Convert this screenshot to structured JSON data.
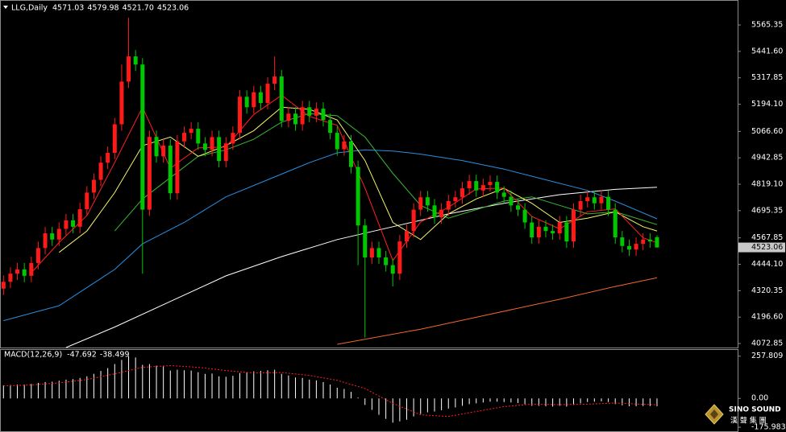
{
  "chart_data": [
    {
      "type": "candlestick",
      "title": "LLG,Daily",
      "info": [
        "4571.03",
        "4579.98",
        "4521.70",
        "4523.06"
      ],
      "xlim": [
        -0.5,
        105.6
      ],
      "open": [
        4330,
        4362,
        4400,
        4420,
        4390,
        4450,
        4520,
        4589,
        4560,
        4610,
        4650,
        4620,
        4702,
        4780,
        4840,
        4920,
        4966,
        5100,
        5300,
        5418,
        5380,
        4700,
        5041,
        4950,
        5000,
        4777,
        5020,
        5060,
        5079,
        5010,
        4980,
        5040,
        4928,
        5010,
        5060,
        5229,
        5180,
        5250,
        5200,
        5290,
        5324,
        5116,
        5150,
        5100,
        5180,
        5140,
        5173,
        5120,
        5060,
        4983,
        5020,
        4900,
        4626,
        4476,
        4520,
        4476,
        4440,
        4400,
        4551,
        4600,
        4700,
        4758,
        4720,
        4664,
        4700,
        4740,
        4758,
        4800,
        4834,
        4790,
        4815,
        4830,
        4780,
        4760,
        4720,
        4700,
        4640,
        4570,
        4620,
        4600,
        4589,
        4640,
        4551,
        4700,
        4740,
        4758,
        4730,
        4760,
        4700,
        4570,
        4530,
        4513,
        4540,
        4560,
        4571.03
      ],
      "high": [
        4392,
        4430,
        4450,
        4450,
        4480,
        4550,
        4619,
        4619,
        4640,
        4680,
        4680,
        4732,
        4810,
        4870,
        4950,
        4996,
        5130,
        5380,
        5599,
        5448,
        5410,
        5071,
        5071,
        5030,
        5030,
        5050,
        5090,
        5109,
        5109,
        5040,
        5070,
        5070,
        5040,
        5090,
        5259,
        5259,
        5280,
        5280,
        5320,
        5418,
        5354,
        5180,
        5180,
        5210,
        5210,
        5203,
        5203,
        5150,
        5090,
        5050,
        5050,
        4930,
        4656,
        4550,
        4550,
        4506,
        4470,
        4581,
        4630,
        4730,
        4788,
        4788,
        4750,
        4730,
        4770,
        4788,
        4830,
        4864,
        4864,
        4845,
        4860,
        4860,
        4810,
        4790,
        4750,
        4730,
        4670,
        4650,
        4650,
        4630,
        4670,
        4670,
        4730,
        4770,
        4788,
        4788,
        4790,
        4790,
        4730,
        4600,
        4560,
        4570,
        4590,
        4590,
        4579.98
      ],
      "low": [
        4300,
        4332,
        4370,
        4360,
        4360,
        4420,
        4490,
        4530,
        4530,
        4580,
        4590,
        4590,
        4672,
        4750,
        4810,
        4890,
        4936,
        5070,
        5270,
        5350,
        4400,
        4670,
        4920,
        4920,
        4747,
        4747,
        4990,
        5030,
        4980,
        4950,
        4950,
        4898,
        4898,
        4980,
        5030,
        5150,
        5150,
        5170,
        5170,
        5260,
        5086,
        5086,
        5070,
        5070,
        5110,
        5110,
        5090,
        5030,
        4953,
        4953,
        4870,
        4440,
        4100,
        4446,
        4446,
        4410,
        4340,
        4370,
        4521,
        4570,
        4670,
        4690,
        4634,
        4634,
        4670,
        4710,
        4728,
        4770,
        4760,
        4760,
        4785,
        4750,
        4730,
        4690,
        4670,
        4610,
        4540,
        4540,
        4570,
        4559,
        4559,
        4521,
        4521,
        4670,
        4710,
        4700,
        4700,
        4670,
        4540,
        4500,
        4483,
        4483,
        4510,
        4521,
        4521.7
      ],
      "close": [
        4362,
        4400,
        4420,
        4390,
        4450,
        4520,
        4589,
        4560,
        4610,
        4650,
        4620,
        4702,
        4780,
        4840,
        4920,
        4966,
        5100,
        5300,
        5418,
        5380,
        4700,
        5041,
        4950,
        5000,
        4777,
        5020,
        5060,
        5079,
        5010,
        4980,
        5040,
        4928,
        5010,
        5060,
        5229,
        5180,
        5250,
        5200,
        5290,
        5324,
        5116,
        5150,
        5100,
        5180,
        5140,
        5173,
        5120,
        5060,
        4983,
        5020,
        4900,
        4626,
        4476,
        4520,
        4476,
        4440,
        4400,
        4551,
        4600,
        4700,
        4758,
        4720,
        4664,
        4700,
        4740,
        4758,
        4800,
        4834,
        4790,
        4815,
        4830,
        4780,
        4760,
        4720,
        4700,
        4640,
        4570,
        4620,
        4600,
        4589,
        4640,
        4551,
        4700,
        4740,
        4758,
        4730,
        4760,
        4700,
        4570,
        4530,
        4513,
        4540,
        4560,
        4551,
        4523.06
      ],
      "up_color": "#ff1a1a",
      "down_color": "#00c800",
      "lines": [
        {
          "color": "#ffffff",
          "x": [
            9,
            16,
            24,
            32,
            40,
            48,
            56,
            64,
            72,
            80,
            88,
            94
          ],
          "values": [
            4054,
            4150,
            4270,
            4390,
            4480,
            4560,
            4620,
            4680,
            4730,
            4770,
            4795,
            4805
          ]
        },
        {
          "color": "#f0682c",
          "x": [
            48,
            60,
            70,
            80,
            88,
            94
          ],
          "values": [
            4069,
            4140,
            4210,
            4280,
            4340,
            4381
          ]
        },
        {
          "color": "#2a8fe0",
          "x": [
            0,
            8,
            16,
            20,
            26,
            32,
            38,
            44,
            48,
            52,
            56,
            60,
            66,
            72,
            78,
            84,
            88,
            94
          ],
          "values": [
            4180,
            4250,
            4420,
            4540,
            4640,
            4760,
            4840,
            4920,
            4966,
            4980,
            4975,
            4960,
            4930,
            4890,
            4840,
            4790,
            4740,
            4657
          ]
        },
        {
          "color": "#3cb832",
          "x": [
            16,
            20,
            24,
            28,
            32,
            36,
            40,
            44,
            48,
            52,
            56,
            60,
            64,
            68,
            72,
            76,
            80,
            84,
            88,
            92,
            94
          ],
          "values": [
            4600,
            4750,
            4850,
            4950,
            4980,
            5030,
            5110,
            5150,
            5140,
            5040,
            4870,
            4720,
            4660,
            4700,
            4740,
            4760,
            4720,
            4680,
            4690,
            4650,
            4630
          ]
        },
        {
          "color": "#f5f56a",
          "x": [
            8,
            12,
            16,
            20,
            24,
            28,
            32,
            36,
            40,
            44,
            48,
            52,
            56,
            60,
            64,
            68,
            72,
            76,
            80,
            84,
            88,
            92,
            94
          ],
          "values": [
            4500,
            4600,
            4780,
            5000,
            5040,
            4950,
            5000,
            5070,
            5180,
            5170,
            5120,
            4930,
            4640,
            4560,
            4680,
            4750,
            4800,
            4730,
            4640,
            4660,
            4690,
            4620,
            4600
          ]
        },
        {
          "color": "#ff2020",
          "x": [
            4,
            8,
            12,
            16,
            20,
            24,
            28,
            32,
            36,
            40,
            44,
            48,
            52,
            56,
            60,
            64,
            68,
            72,
            76,
            80,
            84,
            88,
            92,
            94
          ],
          "values": [
            4404,
            4546,
            4672,
            4921,
            5180,
            4894,
            4989,
            4994,
            5146,
            5236,
            5137,
            5095,
            4801,
            4462,
            4642,
            4711,
            4797,
            4801,
            4668,
            4610,
            4690,
            4704,
            4568,
            4545
          ]
        }
      ],
      "ylim": [
        4054,
        5671
      ],
      "yticks": [
        {
          "value": 5565.35,
          "label": "5565.35"
        },
        {
          "value": 5441.6,
          "label": "5441.60"
        },
        {
          "value": 5317.85,
          "label": "5317.85"
        },
        {
          "value": 5194.1,
          "label": "5194.10"
        },
        {
          "value": 5066.6,
          "label": "5066.60"
        },
        {
          "value": 4942.85,
          "label": "4942.85"
        },
        {
          "value": 4819.1,
          "label": "4819.10"
        },
        {
          "value": 4695.35,
          "label": "4695.35"
        },
        {
          "value": 4567.85,
          "label": "4567.85"
        },
        {
          "value": 4444.1,
          "label": "4444.10"
        },
        {
          "value": 4320.35,
          "label": "4320.35"
        },
        {
          "value": 4196.6,
          "label": "4196.60"
        },
        {
          "value": 4072.85,
          "label": "4072.85"
        }
      ],
      "last_price": {
        "value": 4523.06,
        "label": "4523.06"
      }
    },
    {
      "type": "macd",
      "title": "MACD(12,26,9)",
      "info": [
        "-47.692",
        "-38.499"
      ],
      "xlim": [
        -0.5,
        105.6
      ],
      "histogram": [
        80,
        82,
        85,
        84,
        88,
        95,
        100,
        102,
        108,
        115,
        118,
        125,
        135,
        150,
        168,
        185,
        210,
        235,
        258,
        250,
        205,
        210,
        200,
        195,
        170,
        175,
        172,
        170,
        160,
        150,
        152,
        135,
        132,
        138,
        155,
        160,
        165,
        168,
        172,
        175,
        150,
        140,
        128,
        125,
        115,
        110,
        100,
        85,
        65,
        58,
        40,
        5,
        -40,
        -70,
        -100,
        -125,
        -148,
        -140,
        -130,
        -110,
        -95,
        -85,
        -80,
        -72,
        -62,
        -55,
        -45,
        -35,
        -30,
        -25,
        -20,
        -20,
        -22,
        -25,
        -28,
        -35,
        -45,
        -45,
        -48,
        -50,
        -45,
        -50,
        -40,
        -30,
        -22,
        -20,
        -18,
        -22,
        -35,
        -42,
        -48,
        -48,
        -47,
        -47,
        -47.692
      ],
      "histogram_color": "#ffffff",
      "signal": {
        "color": "#ff2020",
        "x": [
          0,
          4,
          8,
          12,
          16,
          20,
          24,
          28,
          32,
          36,
          40,
          44,
          48,
          52,
          56,
          60,
          64,
          68,
          72,
          76,
          80,
          84,
          88,
          92,
          94
        ],
        "values": [
          76,
          82,
          95,
          115,
          150,
          190,
          200,
          190,
          170,
          155,
          158,
          140,
          110,
          60,
          -30,
          -100,
          -110,
          -80,
          -50,
          -35,
          -38,
          -35,
          -28,
          -36,
          -38.499
        ]
      },
      "ylim": [
        -205,
        286
      ],
      "yticks": [
        257.809,
        {
          "value": 0,
          "label": "0.00"
        },
        -175.983
      ]
    }
  ],
  "watermark": {
    "name": "SINO SOUND",
    "sub": "漢 聲 集 團"
  }
}
